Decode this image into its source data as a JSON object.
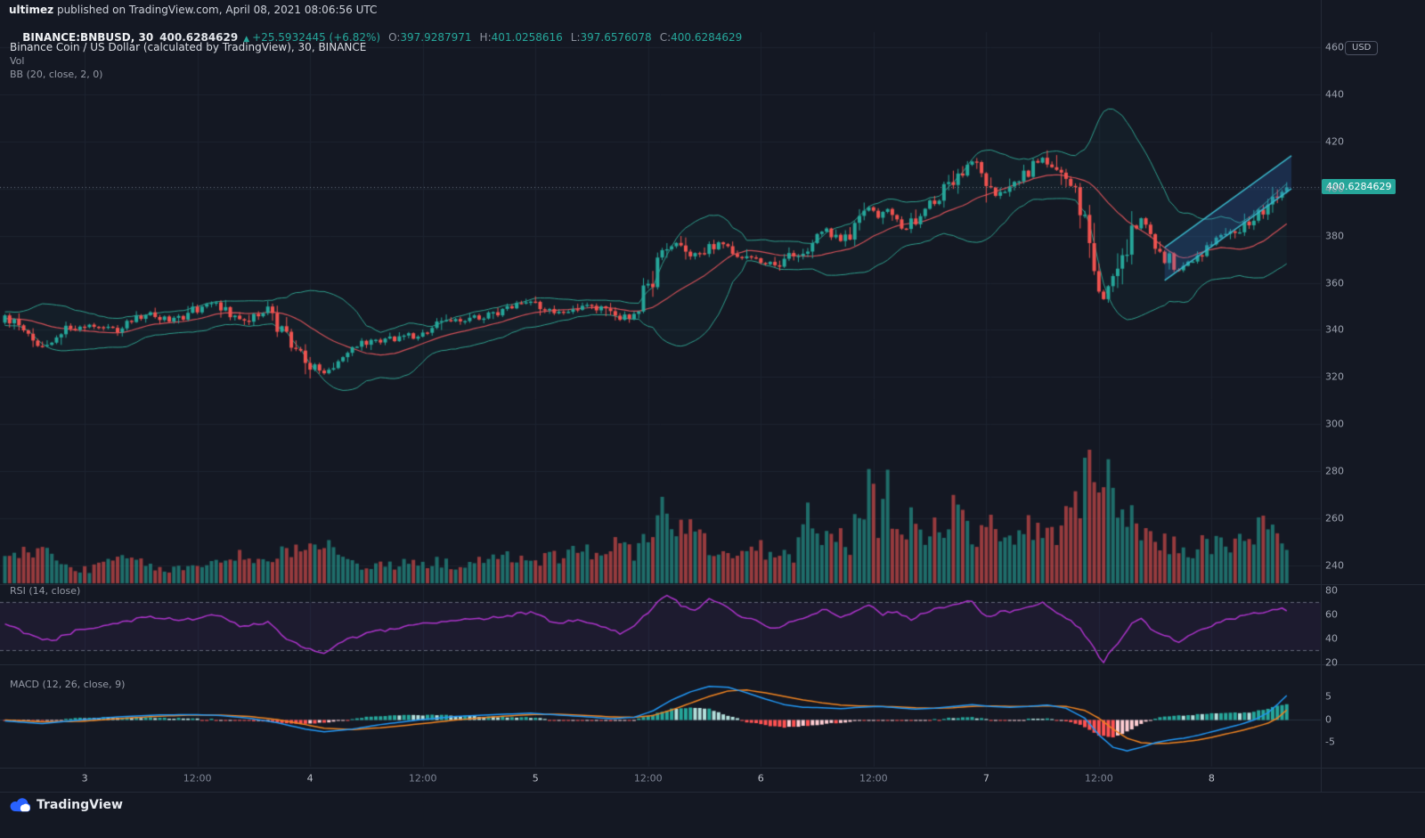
{
  "header": {
    "author": "ultimez",
    "published_rest": " published on TradingView.com, April 08, 2021 08:06:56 UTC",
    "symbol": "BINANCE:BNBUSD, 30",
    "last_price": "400.6284629",
    "arrow": "▲",
    "change": "+25.5932445 (+6.82%)",
    "o_label": "O:",
    "o_value": "397.9287971",
    "h_label": "H:",
    "h_value": "401.0258616",
    "l_label": "L:",
    "l_value": "397.6576078",
    "c_label": "C:",
    "c_value": "400.6284629"
  },
  "legend": {
    "title": "Binance Coin / US Dollar (calculated by TradingView), 30, BINANCE",
    "vol": "Vol",
    "bb": "BB (20, close, 2, 0)",
    "rsi": "RSI (14, close)",
    "macd": "MACD (12, 26, close, 9)"
  },
  "price_axis": {
    "unit": "USD",
    "last": "400.6284629",
    "ticks": [
      460,
      440,
      420,
      400,
      380,
      360,
      340,
      320,
      300,
      280,
      260,
      240
    ]
  },
  "rsi_axis": {
    "ticks": [
      80,
      60,
      40,
      20
    ]
  },
  "macd_axis": {
    "ticks": [
      5,
      0,
      -5
    ]
  },
  "time_axis": {
    "ticks": [
      {
        "label": "3",
        "idx": 17,
        "major": true
      },
      {
        "label": "12:00",
        "idx": 41,
        "major": false
      },
      {
        "label": "4",
        "idx": 65,
        "major": true
      },
      {
        "label": "12:00",
        "idx": 89,
        "major": false
      },
      {
        "label": "5",
        "idx": 113,
        "major": true
      },
      {
        "label": "12:00",
        "idx": 137,
        "major": false
      },
      {
        "label": "6",
        "idx": 161,
        "major": true
      },
      {
        "label": "12:00",
        "idx": 185,
        "major": false
      },
      {
        "label": "7",
        "idx": 209,
        "major": true
      },
      {
        "label": "12:00",
        "idx": 233,
        "major": false
      },
      {
        "label": "8",
        "idx": 257,
        "major": true
      }
    ]
  },
  "footer": {
    "brand": "TradingView"
  },
  "colors": {
    "background": "#141823",
    "grid": "#1c2330",
    "up": "#26a69a",
    "down": "#ef5350",
    "volume_up": "rgba(38,166,154,0.6)",
    "volume_down": "rgba(239,83,80,0.6)",
    "bb_band": "#2f9e8d",
    "bb_basis": "#cf5058",
    "bb_fill": "rgba(47,158,141,0.05)",
    "price_line": "#6e7a86",
    "price_tag_bg": "#26a69a",
    "rsi": "#ab34c9",
    "rsi_band_line": "rgba(160,170,185,0.55)",
    "rsi_band_fill": "rgba(136,61,186,0.08)",
    "macd": "#2196f3",
    "macd_signal": "#ef8321",
    "macd_zero": "#273040",
    "hist_up": "#26a69a",
    "hist_up_pale": "#b2dfdb",
    "hist_down": "#ff5252",
    "hist_down_pale": "#ffcdd2",
    "channel_line": "#3ab5c9",
    "channel_fill": "rgba(56,121,217,0.22)"
  },
  "chart_data": {
    "type": "candlestick",
    "title": "Binance Coin / US Dollar (calculated by TradingView), 30, BINANCE",
    "symbol": "BINANCE:BNBUSD",
    "interval": "30m",
    "time_start": "2021-04-02 15:30 UTC",
    "time_end": "2021-04-08 08:00 UTC",
    "candle_count": 274,
    "last_price": 400.6284629,
    "price_ylim": [
      232,
      466
    ],
    "grid": true,
    "legend_position": "top-left",
    "price_path_keypoints": [
      [
        0,
        345
      ],
      [
        4,
        340
      ],
      [
        8,
        333
      ],
      [
        12,
        340
      ],
      [
        18,
        342
      ],
      [
        24,
        340
      ],
      [
        30,
        347
      ],
      [
        36,
        344
      ],
      [
        42,
        350
      ],
      [
        45,
        352
      ],
      [
        48,
        346
      ],
      [
        52,
        344
      ],
      [
        56,
        349
      ],
      [
        60,
        336
      ],
      [
        64,
        327
      ],
      [
        68,
        321
      ],
      [
        72,
        328
      ],
      [
        76,
        334
      ],
      [
        82,
        336
      ],
      [
        88,
        338
      ],
      [
        94,
        344
      ],
      [
        100,
        345
      ],
      [
        106,
        348
      ],
      [
        112,
        352
      ],
      [
        116,
        349
      ],
      [
        120,
        347
      ],
      [
        124,
        350
      ],
      [
        128,
        348
      ],
      [
        131,
        344
      ],
      [
        134,
        348
      ],
      [
        137,
        357
      ],
      [
        139,
        368
      ],
      [
        141,
        374
      ],
      [
        143,
        376
      ],
      [
        146,
        371
      ],
      [
        150,
        375
      ],
      [
        153,
        377
      ],
      [
        156,
        373
      ],
      [
        160,
        370
      ],
      [
        164,
        367
      ],
      [
        168,
        372
      ],
      [
        172,
        376
      ],
      [
        175,
        382
      ],
      [
        178,
        378
      ],
      [
        181,
        383
      ],
      [
        184,
        393
      ],
      [
        186,
        388
      ],
      [
        188,
        391
      ],
      [
        190,
        384
      ],
      [
        192,
        383
      ],
      [
        194,
        387
      ],
      [
        196,
        392
      ],
      [
        200,
        399
      ],
      [
        203,
        405
      ],
      [
        205,
        410
      ],
      [
        207,
        412
      ],
      [
        209,
        404
      ],
      [
        211,
        398
      ],
      [
        213,
        401
      ],
      [
        215,
        404
      ],
      [
        217,
        406
      ],
      [
        219,
        409
      ],
      [
        221,
        413
      ],
      [
        223,
        409
      ],
      [
        225,
        404
      ],
      [
        227,
        400
      ],
      [
        229,
        394
      ],
      [
        231,
        380
      ],
      [
        233,
        362
      ],
      [
        234,
        356
      ],
      [
        236,
        360
      ],
      [
        238,
        368
      ],
      [
        240,
        381
      ],
      [
        242,
        387
      ],
      [
        244,
        379
      ],
      [
        246,
        373
      ],
      [
        248,
        370
      ],
      [
        250,
        365
      ],
      [
        252,
        368
      ],
      [
        254,
        371
      ],
      [
        256,
        374
      ],
      [
        258,
        377
      ],
      [
        260,
        380
      ],
      [
        262,
        382
      ],
      [
        264,
        385
      ],
      [
        266,
        388
      ],
      [
        268,
        391
      ],
      [
        270,
        394
      ],
      [
        272,
        398
      ],
      [
        273,
        400.63
      ]
    ],
    "volume_rel_keypoints": [
      [
        0,
        0.18
      ],
      [
        4,
        0.22
      ],
      [
        8,
        0.26
      ],
      [
        12,
        0.14
      ],
      [
        16,
        0.1
      ],
      [
        20,
        0.12
      ],
      [
        25,
        0.2
      ],
      [
        30,
        0.13
      ],
      [
        35,
        0.1
      ],
      [
        40,
        0.12
      ],
      [
        45,
        0.16
      ],
      [
        50,
        0.22
      ],
      [
        55,
        0.16
      ],
      [
        60,
        0.24
      ],
      [
        64,
        0.3
      ],
      [
        68,
        0.32
      ],
      [
        72,
        0.18
      ],
      [
        78,
        0.12
      ],
      [
        84,
        0.14
      ],
      [
        90,
        0.16
      ],
      [
        96,
        0.14
      ],
      [
        102,
        0.16
      ],
      [
        108,
        0.2
      ],
      [
        114,
        0.18
      ],
      [
        120,
        0.22
      ],
      [
        125,
        0.24
      ],
      [
        130,
        0.3
      ],
      [
        134,
        0.22
      ],
      [
        137,
        0.4
      ],
      [
        140,
        0.52
      ],
      [
        143,
        0.45
      ],
      [
        146,
        0.4
      ],
      [
        149,
        0.3
      ],
      [
        152,
        0.22
      ],
      [
        156,
        0.2
      ],
      [
        160,
        0.26
      ],
      [
        164,
        0.22
      ],
      [
        168,
        0.2
      ],
      [
        171,
        0.5
      ],
      [
        174,
        0.3
      ],
      [
        177,
        0.35
      ],
      [
        180,
        0.3
      ],
      [
        183,
        0.6
      ],
      [
        184,
        0.82
      ],
      [
        186,
        0.4
      ],
      [
        188,
        0.66
      ],
      [
        190,
        0.4
      ],
      [
        193,
        0.5
      ],
      [
        196,
        0.35
      ],
      [
        199,
        0.4
      ],
      [
        202,
        0.62
      ],
      [
        205,
        0.4
      ],
      [
        208,
        0.35
      ],
      [
        211,
        0.42
      ],
      [
        214,
        0.35
      ],
      [
        217,
        0.4
      ],
      [
        220,
        0.42
      ],
      [
        223,
        0.36
      ],
      [
        226,
        0.45
      ],
      [
        229,
        0.6
      ],
      [
        230,
        1.0
      ],
      [
        231,
        0.88
      ],
      [
        233,
        0.55
      ],
      [
        235,
        0.8
      ],
      [
        237,
        0.55
      ],
      [
        240,
        0.45
      ],
      [
        243,
        0.35
      ],
      [
        246,
        0.3
      ],
      [
        249,
        0.28
      ],
      [
        252,
        0.25
      ],
      [
        255,
        0.28
      ],
      [
        258,
        0.3
      ],
      [
        261,
        0.28
      ],
      [
        264,
        0.32
      ],
      [
        267,
        0.42
      ],
      [
        270,
        0.38
      ],
      [
        273,
        0.22
      ]
    ],
    "bollinger": {
      "period": 20,
      "source": "close",
      "stddev": 2,
      "offset": 0
    },
    "volume_indicator": "Vol",
    "rsi": {
      "period": 14,
      "source": "close",
      "overbought": 70,
      "oversold": 30,
      "keypoints": [
        [
          0,
          52
        ],
        [
          6,
          42
        ],
        [
          10,
          38
        ],
        [
          16,
          48
        ],
        [
          24,
          52
        ],
        [
          30,
          58
        ],
        [
          38,
          55
        ],
        [
          45,
          60
        ],
        [
          50,
          50
        ],
        [
          56,
          53
        ],
        [
          60,
          40
        ],
        [
          64,
          32
        ],
        [
          68,
          27
        ],
        [
          72,
          38
        ],
        [
          78,
          45
        ],
        [
          86,
          50
        ],
        [
          94,
          55
        ],
        [
          100,
          56
        ],
        [
          106,
          58
        ],
        [
          112,
          62
        ],
        [
          117,
          53
        ],
        [
          122,
          55
        ],
        [
          127,
          50
        ],
        [
          131,
          44
        ],
        [
          134,
          50
        ],
        [
          137,
          62
        ],
        [
          141,
          77
        ],
        [
          144,
          68
        ],
        [
          147,
          64
        ],
        [
          150,
          72
        ],
        [
          153,
          68
        ],
        [
          156,
          60
        ],
        [
          160,
          55
        ],
        [
          164,
          48
        ],
        [
          168,
          55
        ],
        [
          172,
          60
        ],
        [
          175,
          65
        ],
        [
          178,
          57
        ],
        [
          181,
          63
        ],
        [
          184,
          68
        ],
        [
          187,
          60
        ],
        [
          190,
          63
        ],
        [
          193,
          55
        ],
        [
          196,
          62
        ],
        [
          200,
          66
        ],
        [
          203,
          69
        ],
        [
          206,
          71
        ],
        [
          209,
          58
        ],
        [
          212,
          62
        ],
        [
          215,
          63
        ],
        [
          218,
          66
        ],
        [
          221,
          70
        ],
        [
          224,
          61
        ],
        [
          227,
          55
        ],
        [
          229,
          48
        ],
        [
          231,
          38
        ],
        [
          233,
          25
        ],
        [
          234,
          21
        ],
        [
          236,
          32
        ],
        [
          238,
          40
        ],
        [
          240,
          52
        ],
        [
          242,
          57
        ],
        [
          244,
          48
        ],
        [
          246,
          43
        ],
        [
          248,
          41
        ],
        [
          250,
          36
        ],
        [
          252,
          42
        ],
        [
          254,
          46
        ],
        [
          256,
          49
        ],
        [
          258,
          52
        ],
        [
          260,
          55
        ],
        [
          262,
          57
        ],
        [
          264,
          59
        ],
        [
          266,
          61
        ],
        [
          268,
          62
        ],
        [
          270,
          64
        ],
        [
          272,
          66
        ],
        [
          273,
          64
        ]
      ]
    },
    "macd": {
      "fast": 12,
      "slow": 26,
      "source": "close",
      "smoothing": 9,
      "keypoints_idx_macd_signal": [
        [
          0,
          -0.4,
          -0.2
        ],
        [
          8,
          -1.0,
          -0.6
        ],
        [
          16,
          -0.2,
          -0.5
        ],
        [
          24,
          0.5,
          0.1
        ],
        [
          32,
          0.9,
          0.6
        ],
        [
          40,
          1.0,
          0.9
        ],
        [
          46,
          0.8,
          0.9
        ],
        [
          52,
          0.2,
          0.6
        ],
        [
          58,
          -0.8,
          -0.1
        ],
        [
          64,
          -2.2,
          -1.2
        ],
        [
          68,
          -2.8,
          -2.0
        ],
        [
          74,
          -2.2,
          -2.3
        ],
        [
          80,
          -1.2,
          -1.9
        ],
        [
          88,
          -0.2,
          -1.1
        ],
        [
          96,
          0.6,
          -0.2
        ],
        [
          104,
          1.0,
          0.5
        ],
        [
          112,
          1.3,
          1.0
        ],
        [
          118,
          0.9,
          1.1
        ],
        [
          124,
          0.5,
          0.8
        ],
        [
          129,
          0.1,
          0.5
        ],
        [
          134,
          0.4,
          0.4
        ],
        [
          138,
          1.8,
          0.8
        ],
        [
          142,
          4.2,
          2.0
        ],
        [
          146,
          6.0,
          3.5
        ],
        [
          150,
          7.2,
          5.0
        ],
        [
          154,
          7.0,
          6.2
        ],
        [
          158,
          5.8,
          6.4
        ],
        [
          162,
          4.4,
          5.8
        ],
        [
          166,
          3.2,
          5.0
        ],
        [
          170,
          2.6,
          4.2
        ],
        [
          174,
          2.5,
          3.6
        ],
        [
          178,
          2.3,
          3.1
        ],
        [
          182,
          2.6,
          2.9
        ],
        [
          186,
          2.8,
          2.8
        ],
        [
          190,
          2.5,
          2.7
        ],
        [
          194,
          2.2,
          2.5
        ],
        [
          198,
          2.4,
          2.4
        ],
        [
          202,
          2.8,
          2.5
        ],
        [
          206,
          3.2,
          2.8
        ],
        [
          210,
          2.8,
          2.9
        ],
        [
          214,
          2.6,
          2.8
        ],
        [
          218,
          2.8,
          2.8
        ],
        [
          222,
          3.1,
          2.9
        ],
        [
          226,
          2.4,
          2.8
        ],
        [
          230,
          0.2,
          1.9
        ],
        [
          233,
          -3.5,
          0.2
        ],
        [
          236,
          -6.2,
          -2.2
        ],
        [
          239,
          -7.0,
          -4.2
        ],
        [
          242,
          -6.2,
          -5.2
        ],
        [
          245,
          -5.2,
          -5.4
        ],
        [
          248,
          -4.6,
          -5.3
        ],
        [
          251,
          -4.2,
          -5.0
        ],
        [
          254,
          -3.6,
          -4.6
        ],
        [
          257,
          -2.8,
          -4.0
        ],
        [
          260,
          -2.0,
          -3.3
        ],
        [
          263,
          -1.2,
          -2.6
        ],
        [
          266,
          -0.2,
          -1.8
        ],
        [
          269,
          1.4,
          -0.9
        ],
        [
          271,
          3.2,
          0.2
        ],
        [
          273,
          5.2,
          2.0
        ]
      ]
    },
    "drawing_channel": {
      "start_idx": 247,
      "end_idx": 274,
      "start_mid_price": 368,
      "end_mid_price": 407,
      "half_width_price": 7
    }
  }
}
